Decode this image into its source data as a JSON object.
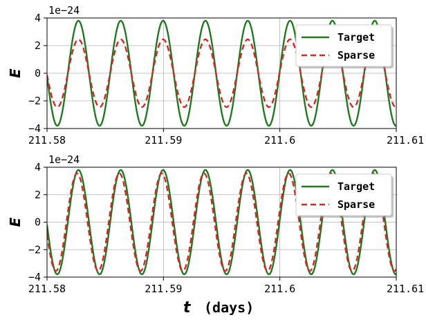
{
  "colors": {
    "target": "#1f7a1f",
    "sparse": "#d62728"
  },
  "chart_data": [
    {
      "type": "line",
      "offset_text": "1e−24",
      "ylabel": "E",
      "xlim": [
        211.58,
        211.61
      ],
      "ylim": [
        -4,
        4
      ],
      "xticks": [
        211.58,
        211.59,
        211.6,
        211.61
      ],
      "xtick_labels": [
        "211.58",
        "211.59",
        "211.6",
        "211.61"
      ],
      "yticks": [
        4,
        2,
        0,
        -2,
        -4
      ],
      "ytick_labels": [
        "4",
        "2",
        "0",
        "−2",
        "−4"
      ],
      "grid": true,
      "legend": "top-right",
      "period_days": 0.003636,
      "series": [
        {
          "name": "Target",
          "style": "solid",
          "amplitude": 3.8,
          "phase_offset_days": 0.0
        },
        {
          "name": "Sparse",
          "style": "dashed",
          "amplitude": 2.45,
          "phase_offset_days": 0.0
        }
      ]
    },
    {
      "type": "line",
      "offset_text": "1e−24",
      "ylabel": "E",
      "xlabel_var": "t",
      "xlabel_unit": "(days)",
      "xlim": [
        211.58,
        211.61
      ],
      "ylim": [
        -4,
        4
      ],
      "xticks": [
        211.58,
        211.59,
        211.6,
        211.61
      ],
      "xtick_labels": [
        "211.58",
        "211.59",
        "211.6",
        "211.61"
      ],
      "yticks": [
        4,
        2,
        0,
        -2,
        -4
      ],
      "ytick_labels": [
        "4",
        "2",
        "0",
        "−2",
        "−4"
      ],
      "grid": true,
      "legend": "top-right",
      "period_days": 0.003636,
      "series": [
        {
          "name": "Target",
          "style": "solid",
          "amplitude": 3.8,
          "phase_offset_days": 0.0
        },
        {
          "name": "Sparse",
          "style": "dashed",
          "amplitude": 3.55,
          "phase_offset_days": -0.00012
        }
      ]
    }
  ]
}
